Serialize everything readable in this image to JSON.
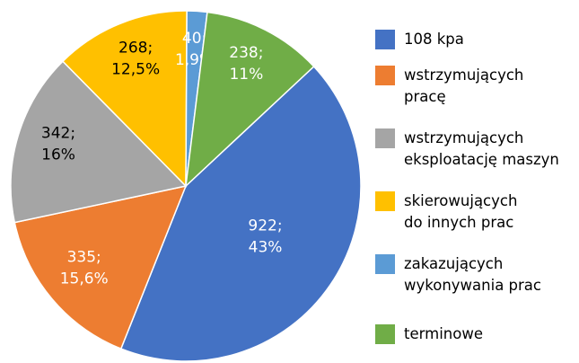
{
  "chart_data": {
    "type": "pie",
    "categories": [
      "108 kpa",
      "wstrzymujących\npracę",
      "wstrzymujących\neksploatację maszyn",
      "skierowujących\ndo innych prac",
      "zakazujących\nwykonywania prac",
      "terminowe"
    ],
    "values": [
      922,
      335,
      342,
      268,
      40,
      238
    ],
    "value_labels": [
      "922;",
      "335;",
      "342;",
      "268;",
      "40;",
      "238;"
    ],
    "percent_labels": [
      "43%",
      "15,6%",
      "16%",
      "12,5%",
      "1,9%",
      "11%"
    ],
    "colors": [
      "#4472c4",
      "#ed7d31",
      "#a5a5a5",
      "#ffc000",
      "#5b9bd5",
      "#70ad47"
    ],
    "label_colors": [
      "#ffffff",
      "#ffffff",
      "#000000",
      "#000000",
      "#ffffff",
      "#ffffff"
    ],
    "start_angle": 47,
    "legend": "right"
  }
}
